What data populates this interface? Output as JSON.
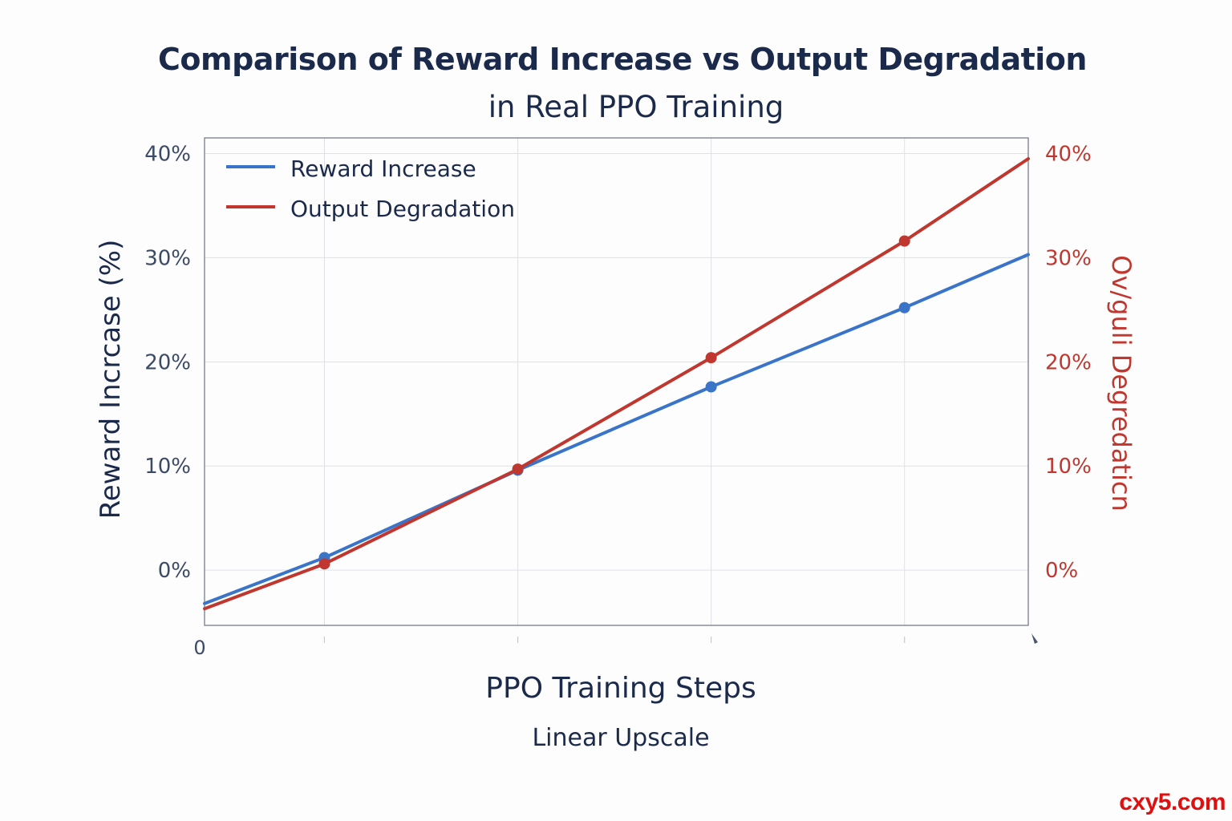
{
  "chart_data": {
    "type": "line",
    "title": "Comparison of Reward Increase vs Output Degradation",
    "subtitle": "in Real PPO Training",
    "xlabel": "PPO Training Steps",
    "x_sublabel": "Linear Upscale",
    "x_tick_labels": [
      "0"
    ],
    "x": [
      0,
      1,
      2,
      3,
      4,
      4.65
    ],
    "ylabel_left": "Reward Incrcase (%)",
    "ylabel_right": "Ov/guli Degredaticn",
    "y_ticks": [
      0,
      10,
      20,
      30,
      40
    ],
    "y_tick_labels_left": [
      "0%",
      "10%",
      "20%",
      "30%",
      "40%"
    ],
    "y_tick_labels_right": [
      "0%",
      "10%",
      "20%",
      "30%",
      "40%"
    ],
    "ylim": [
      -5.3,
      41.5
    ],
    "xlim": [
      0,
      4.26
    ],
    "grid": true,
    "legend_position": "top-left",
    "series": [
      {
        "name": "Reward Increase",
        "color": "#3a74c9",
        "x": [
          0,
          0.62,
          1.62,
          2.62,
          3.62,
          4.26
        ],
        "values": [
          -3.2,
          1.2,
          9.6,
          17.6,
          25.2,
          30.3
        ],
        "markers": [
          1,
          2,
          3,
          4
        ]
      },
      {
        "name": "Output Degradation",
        "color": "#bf372e",
        "x": [
          0,
          0.62,
          1.62,
          2.62,
          3.62,
          4.26
        ],
        "values": [
          -3.7,
          0.6,
          9.7,
          20.4,
          31.6,
          39.5
        ],
        "markers": [
          1,
          2,
          3,
          4
        ]
      }
    ]
  },
  "watermark": "cxy5.com"
}
